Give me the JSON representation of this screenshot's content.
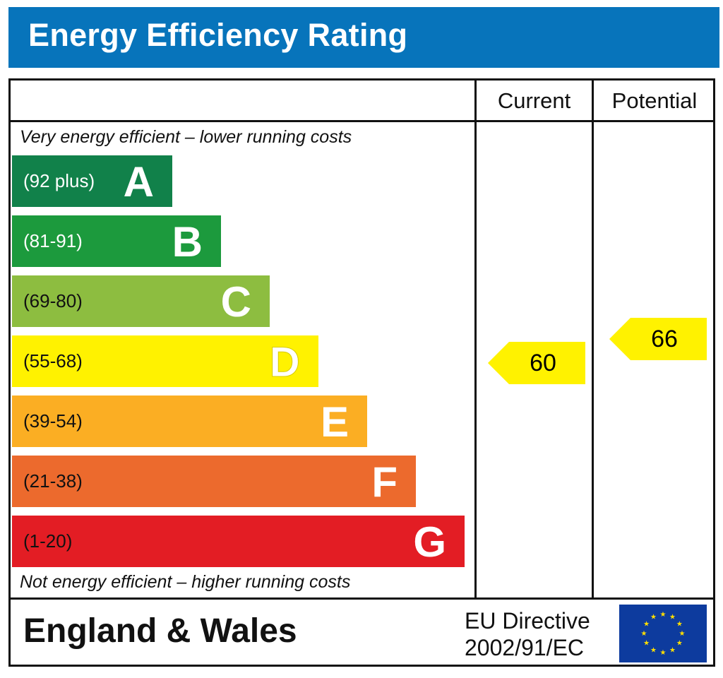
{
  "title": "Energy Efficiency Rating",
  "columns": {
    "current": "Current",
    "potential": "Potential"
  },
  "notes": {
    "top": "Very energy efficient – lower running costs",
    "bottom": "Not energy efficient – higher running costs"
  },
  "footer": {
    "country": "England & Wales",
    "directive_line1": "EU Directive",
    "directive_line2": "2002/91/EC",
    "flag_icon": "eu-flag-icon"
  },
  "chart_data": {
    "type": "bar",
    "title": "Energy Efficiency Rating",
    "categories": [
      "A",
      "B",
      "C",
      "D",
      "E",
      "F",
      "G"
    ],
    "bands": [
      {
        "letter": "A",
        "range": "(92 plus)",
        "color": "#11814a",
        "range_color": "#ffffff"
      },
      {
        "letter": "B",
        "range": "(81-91)",
        "color": "#1c9a3d",
        "range_color": "#ffffff"
      },
      {
        "letter": "C",
        "range": "(69-80)",
        "color": "#8dbd40",
        "range_color": "#111111"
      },
      {
        "letter": "D",
        "range": "(55-68)",
        "color": "#fff200",
        "range_color": "#111111"
      },
      {
        "letter": "E",
        "range": "(39-54)",
        "color": "#fbae23",
        "range_color": "#111111"
      },
      {
        "letter": "F",
        "range": "(21-38)",
        "color": "#ec6a2d",
        "range_color": "#111111"
      },
      {
        "letter": "G",
        "range": "(1-20)",
        "color": "#e31d24",
        "range_color": "#111111"
      }
    ],
    "ratings": {
      "current": {
        "value": 60,
        "label": "60",
        "color": "#fff200"
      },
      "potential": {
        "value": 66,
        "label": "66",
        "color": "#fff200"
      }
    }
  }
}
